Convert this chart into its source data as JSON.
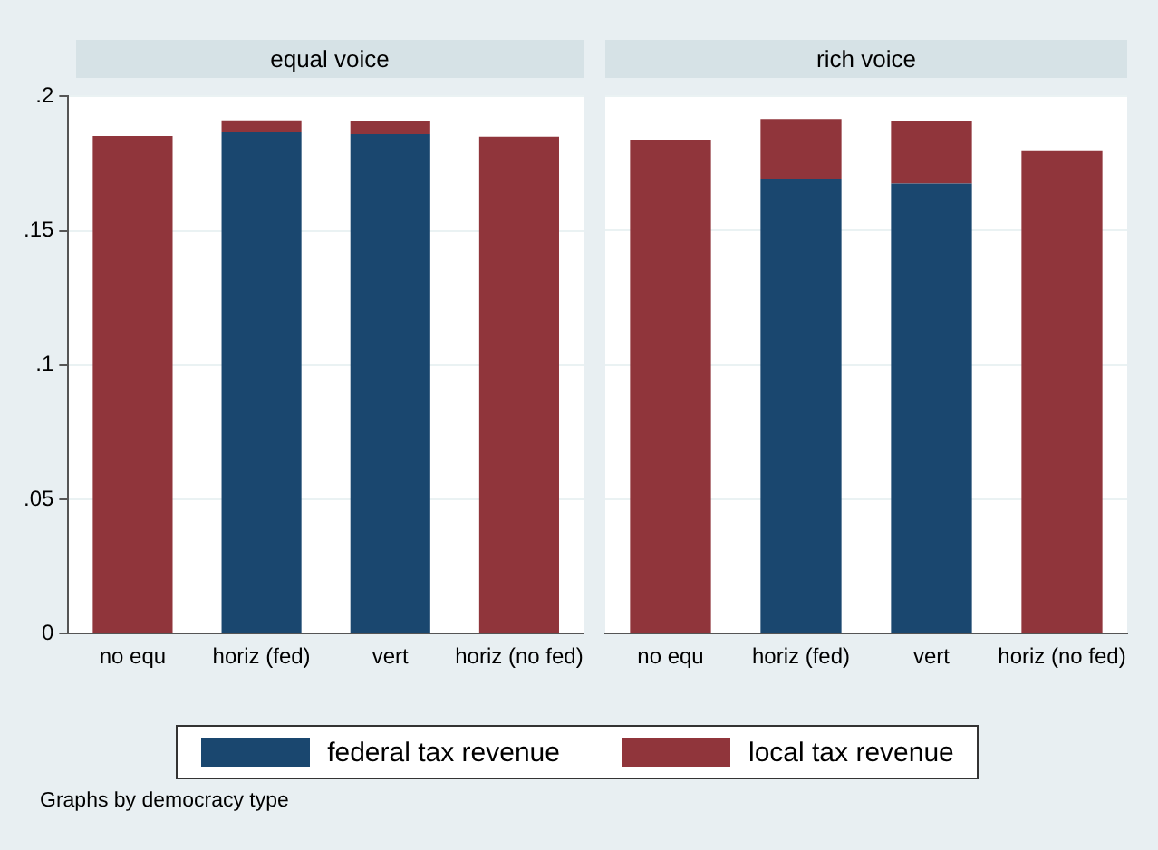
{
  "chart_data": [
    {
      "type": "bar",
      "title": "equal voice",
      "categories": [
        "no equ",
        "horiz (fed)",
        "vert",
        "horiz (no fed)"
      ],
      "stacked": true,
      "series": [
        {
          "name": "federal tax revenue",
          "color": "#1a476f",
          "values": [
            0,
            0.1866,
            0.186,
            0
          ]
        },
        {
          "name": "local tax revenue",
          "color": "#90353b",
          "values": [
            0.1853,
            0.0045,
            0.005,
            0.185
          ]
        }
      ],
      "ylim": [
        0,
        0.2
      ],
      "yticks": [
        0,
        {
          "value": 0.05,
          "label": ".05"
        },
        {
          "value": 0.1,
          "label": ".1"
        },
        {
          "value": 0.15,
          "label": ".15"
        },
        {
          "value": 0.2,
          "label": ".2"
        }
      ],
      "grid": "y",
      "legend": "bottom",
      "annotations": [
        "Graphs by democracy type"
      ]
    },
    {
      "type": "bar",
      "title": "rich voice",
      "categories": [
        "no equ",
        "horiz (fed)",
        "vert",
        "horiz (no fed)"
      ],
      "stacked": true,
      "series": [
        {
          "color": "#1a476f",
          "values": [
            0,
            0.169,
            0.1675,
            0
          ]
        },
        {
          "color": "#90353b",
          "values": [
            0.1837,
            0.0225,
            0.0233,
            0.1795
          ]
        }
      ],
      "ylim": [
        0,
        0.2
      ],
      "yticks": [
        0,
        0.05,
        0.1,
        0.15,
        0.2
      ],
      "grid": "y",
      "tick_labels": "x"
    }
  ]
}
